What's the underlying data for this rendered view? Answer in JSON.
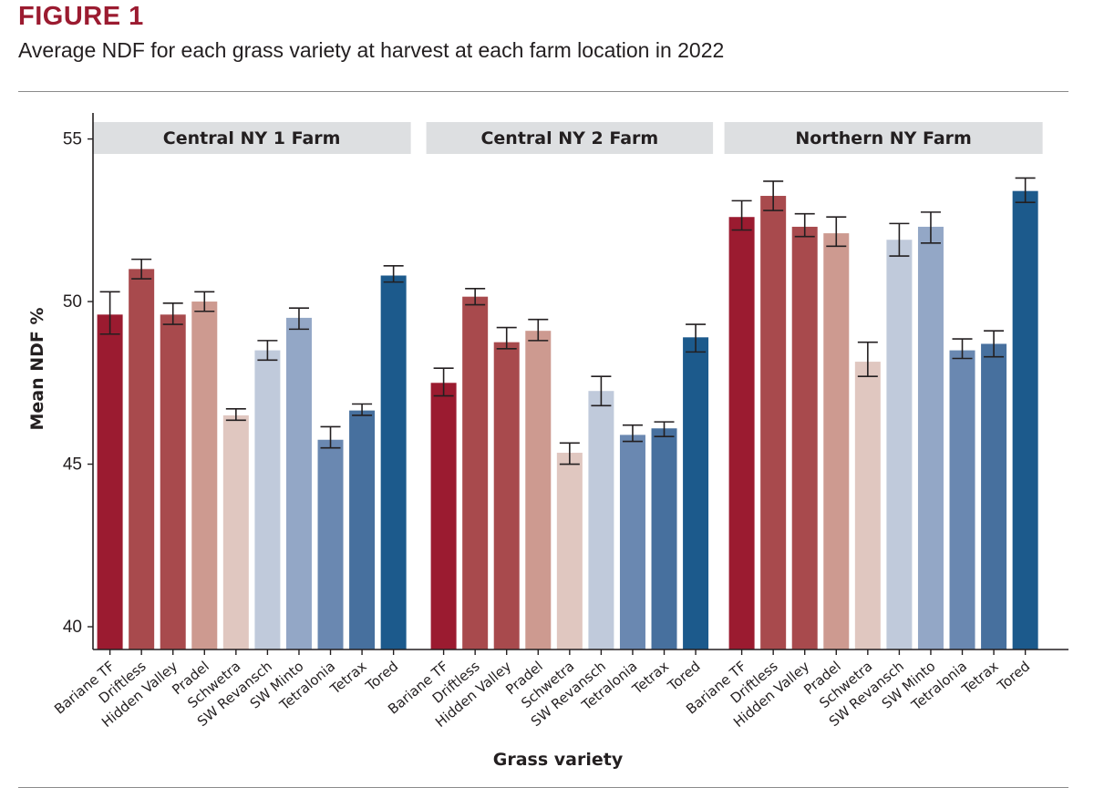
{
  "figure": {
    "label": "FIGURE 1",
    "caption": "Average NDF for each grass variety at harvest at each farm location in 2022"
  },
  "chart_data": {
    "type": "bar",
    "xlabel": "Grass variety",
    "ylabel": "Mean NDF %",
    "ylim": [
      39.3,
      55.8
    ],
    "yticks": [
      "40",
      "45",
      "50",
      "55"
    ],
    "grid": false,
    "error_bars": true,
    "categories": [
      "Bariane TF",
      "Driftless",
      "Hidden Valley",
      "Pradel",
      "Schwetra",
      "SW Revansch",
      "SW Minto",
      "Tetralonia",
      "Tetrax",
      "Tored"
    ],
    "colors": [
      "#9b1b30",
      "#a84a4d",
      "#a84a4d",
      "#cd9a90",
      "#e0c7c0",
      "#c0cadb",
      "#93a7c6",
      "#6a88b1",
      "#47709e",
      "#1c5a8c"
    ],
    "panels": [
      {
        "title": "Central NY 1 Farm",
        "values": [
          49.6,
          51.0,
          49.6,
          50.0,
          46.5,
          48.5,
          49.5,
          45.75,
          46.65,
          50.8
        ],
        "err_low": [
          49.0,
          50.7,
          49.3,
          49.7,
          46.35,
          48.2,
          49.15,
          45.5,
          46.5,
          50.6
        ],
        "err_high": [
          50.3,
          51.3,
          49.95,
          50.3,
          46.7,
          48.8,
          49.8,
          46.15,
          46.85,
          51.1
        ]
      },
      {
        "title": "Central NY 2 Farm",
        "values": [
          47.5,
          50.15,
          48.75,
          49.1,
          45.35,
          47.25,
          45.9,
          46.1,
          48.9
        ],
        "err_low": [
          47.1,
          49.9,
          48.55,
          48.8,
          45.0,
          46.8,
          45.7,
          45.85,
          48.45
        ],
        "err_high": [
          47.95,
          50.4,
          49.2,
          49.45,
          45.65,
          47.7,
          46.2,
          46.3,
          49.3
        ],
        "categories": [
          "Bariane TF",
          "Driftless",
          "Hidden Valley",
          "Pradel",
          "Schwetra",
          "SW Revansch",
          "Tetralonia",
          "Tetrax",
          "Tored"
        ],
        "colors": [
          "#9b1b30",
          "#a84a4d",
          "#a84a4d",
          "#cd9a90",
          "#e0c7c0",
          "#c0cadb",
          "#6a88b1",
          "#47709e",
          "#1c5a8c"
        ]
      },
      {
        "title": "Northern NY Farm",
        "values": [
          52.6,
          53.25,
          52.3,
          52.1,
          48.15,
          51.9,
          52.3,
          48.5,
          48.7,
          53.4
        ],
        "err_low": [
          52.2,
          52.8,
          52.0,
          51.7,
          47.7,
          51.4,
          51.8,
          48.25,
          48.3,
          53.05
        ],
        "err_high": [
          53.1,
          53.7,
          52.7,
          52.6,
          48.75,
          52.4,
          52.75,
          48.85,
          49.1,
          53.8
        ]
      }
    ]
  }
}
